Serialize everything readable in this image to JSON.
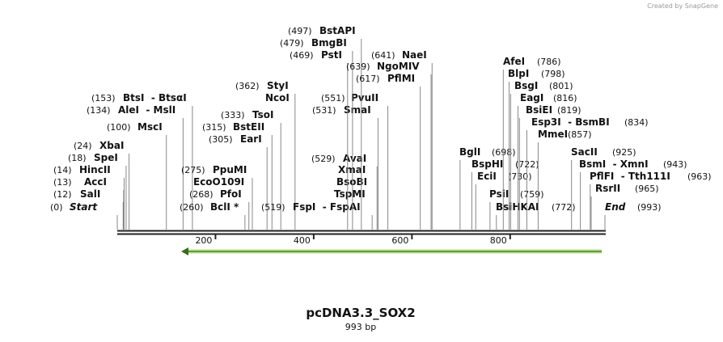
{
  "watermark": "Created by SnapGene",
  "title": "pcDNA3.3_SOX2",
  "length": {
    "value": 993,
    "label": "993 bp"
  },
  "ruler": {
    "ticks": [
      200,
      400,
      600,
      800
    ]
  },
  "sites": [
    {
      "name": "Start",
      "site": {
        "value": 0,
        "label": "(0)"
      }
    },
    {
      "name": "SalI",
      "site": {
        "value": 12,
        "label": "(12)"
      }
    },
    {
      "name": "AccI",
      "site": {
        "value": 13,
        "label": "(13)"
      }
    },
    {
      "name": "HincII",
      "site": {
        "value": 14,
        "label": "(14)"
      }
    },
    {
      "name": "SpeI",
      "site": {
        "value": 18,
        "label": "(18)"
      }
    },
    {
      "name": "XbaI",
      "site": {
        "value": 24,
        "label": "(24)"
      }
    },
    {
      "name": "MscI",
      "site": {
        "value": 100,
        "label": "(100)"
      }
    },
    {
      "name": "AleI  - MslI",
      "site": {
        "value": 134,
        "label": "(134)"
      }
    },
    {
      "name": "BtsI  - BtsαI",
      "site": {
        "value": 153,
        "label": "(153)"
      }
    },
    {
      "name": "BclI *",
      "site": {
        "value": 260,
        "label": "(260)"
      }
    },
    {
      "name": "PfoI",
      "site": {
        "value": 268,
        "label": "(268)"
      }
    },
    {
      "name": "PpuMI",
      "site": {
        "value": 275,
        "label": "(275)"
      }
    },
    {
      "name": "EcoO109I"
    },
    {
      "name": "EarI",
      "site": {
        "value": 305,
        "label": "(305)"
      }
    },
    {
      "name": "BstEII",
      "site": {
        "value": 315,
        "label": "(315)"
      }
    },
    {
      "name": "TsoI",
      "site": {
        "value": 333,
        "label": "(333)"
      }
    },
    {
      "name": "StyI",
      "site": {
        "value": 362,
        "label": "(362)"
      }
    },
    {
      "name": "NcoI"
    },
    {
      "name": "FspI  - FspAI",
      "site": {
        "value": 519,
        "label": "(519)"
      }
    },
    {
      "name": "AvaI",
      "site": {
        "value": 529,
        "label": "(529)"
      }
    },
    {
      "name": "XmaI"
    },
    {
      "name": "BsoBI"
    },
    {
      "name": "TspMI"
    },
    {
      "name": "SmaI",
      "site": {
        "value": 531,
        "label": "(531)"
      }
    },
    {
      "name": "PvuII",
      "site": {
        "value": 551,
        "label": "(551)"
      }
    },
    {
      "name": "PstI",
      "site": {
        "value": 469,
        "label": "(469)"
      }
    },
    {
      "name": "BmgBI",
      "site": {
        "value": 479,
        "label": "(479)"
      }
    },
    {
      "name": "BstAPI",
      "site": {
        "value": 497,
        "label": "(497)"
      }
    },
    {
      "name": "PflMI",
      "site": {
        "value": 617,
        "label": "(617)"
      }
    },
    {
      "name": "NgoMIV",
      "site": {
        "value": 639,
        "label": "(639)"
      }
    },
    {
      "name": "NaeI",
      "site": {
        "value": 641,
        "label": "(641)"
      }
    },
    {
      "name": "BglI",
      "site": {
        "value": 698,
        "label": "(698)"
      }
    },
    {
      "name": "BspHI",
      "site": {
        "value": 722,
        "label": "(722)"
      }
    },
    {
      "name": "EciI",
      "site": {
        "value": 730,
        "label": "(730)"
      }
    },
    {
      "name": "PsiI",
      "site": {
        "value": 759,
        "label": "(759)"
      }
    },
    {
      "name": "BsiHKAI",
      "site": {
        "value": 772,
        "label": "(772)"
      }
    },
    {
      "name": "End",
      "site": {
        "value": 993,
        "label": "(993)"
      }
    },
    {
      "name": "AfeI",
      "site": {
        "value": 786,
        "label": "(786)"
      }
    },
    {
      "name": "BlpI",
      "site": {
        "value": 798,
        "label": "(798)"
      }
    },
    {
      "name": "BsgI",
      "site": {
        "value": 801,
        "label": "(801)"
      }
    },
    {
      "name": "EagI",
      "site": {
        "value": 816,
        "label": "(816)"
      }
    },
    {
      "name": "BsiEI",
      "site": {
        "value": 819,
        "label": "(819)"
      }
    },
    {
      "name": "Esp3I  - BsmBI",
      "site": {
        "value": 834,
        "label": "(834)"
      }
    },
    {
      "name": "MmeI",
      "site": {
        "value": 857,
        "label": "(857)"
      }
    },
    {
      "name": "SacII",
      "site": {
        "value": 925,
        "label": "(925)"
      }
    },
    {
      "name": "BsmI  - XmnI",
      "site": {
        "value": 943,
        "label": "(943)"
      }
    },
    {
      "name": "PflFI  - Tth111I",
      "site": {
        "value": 963,
        "label": "(963)"
      }
    },
    {
      "name": "RsrII",
      "site": {
        "value": 965,
        "label": "(965)"
      }
    }
  ]
}
